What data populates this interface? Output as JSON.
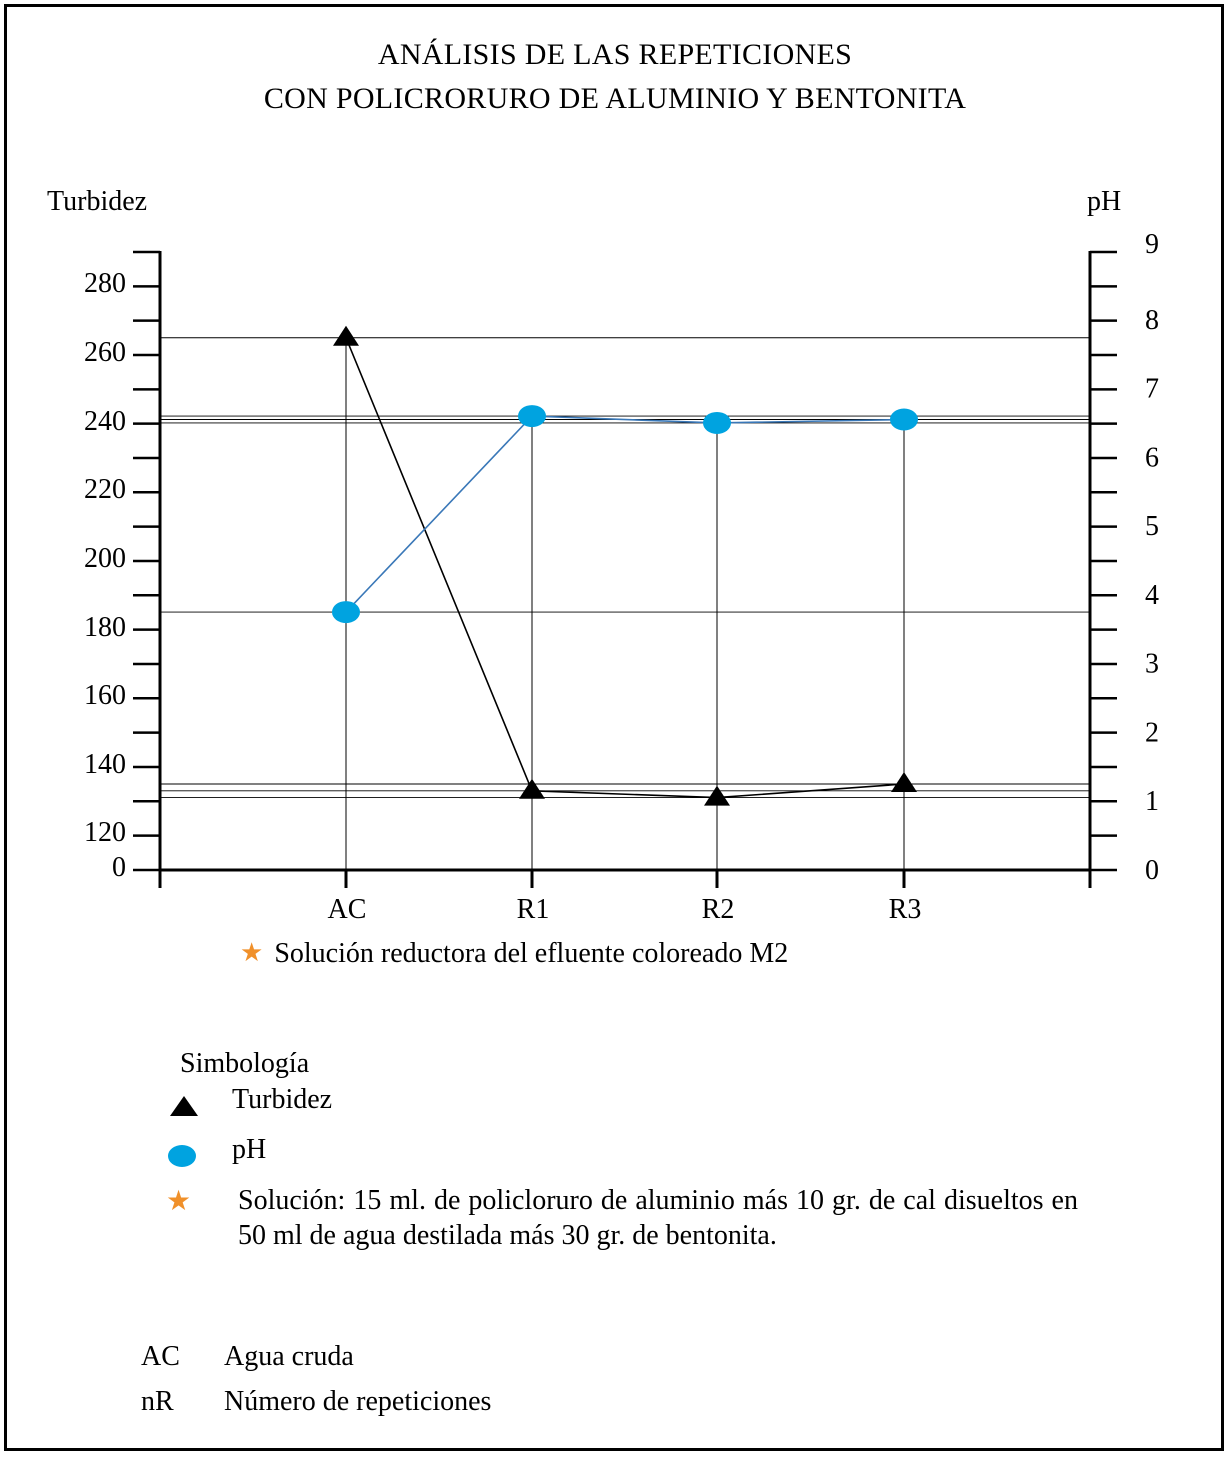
{
  "title_line1": "ANÁLISIS DE LAS REPETICIONES",
  "title_line2": "CON POLICRORURO DE ALUMINIO Y BENTONITA",
  "note": "Solución reductora del efluente coloreado M2",
  "colors": {
    "turbidez": "#000000",
    "ph": "#00a3e0",
    "ph_line": "#3a78b8",
    "star": "#f0902a"
  },
  "legend": {
    "title": "Simbología",
    "turbidez": "Turbidez",
    "ph": "pH",
    "solucion": "Solución: 15 ml. de policloruro de aluminio más 10 gr. de cal disueltos en 50 ml de agua destilada más 30 gr. de bentonita."
  },
  "abbreviations": [
    {
      "key": "AC",
      "value": "Agua cruda"
    },
    {
      "key": "nR",
      "value": "Número de repeticiones"
    }
  ],
  "chart_data": {
    "type": "line",
    "title": "ANÁLISIS DE LAS REPETICIONES CON POLICRORURO DE ALUMINIO Y BENTONITA",
    "categories": [
      "AC",
      "R1",
      "R2",
      "R3"
    ],
    "y_left_label": "Turbidez",
    "y_right_label": "pH",
    "y_left_ticks": [
      "0",
      "120",
      "140",
      "160",
      "180",
      "200",
      "220",
      "240",
      "260",
      "280"
    ],
    "y_right_ticks": [
      "0",
      "1",
      "2",
      "3",
      "4",
      "5",
      "6",
      "7",
      "8",
      "9"
    ],
    "y_left_range": [
      0,
      280
    ],
    "y_right_range": [
      0,
      9
    ],
    "y_left_broken_axis": true,
    "series": [
      {
        "name": "Turbidez",
        "axis": "left",
        "marker": "triangle",
        "values": [
          265,
          133,
          131,
          135
        ]
      },
      {
        "name": "pH",
        "axis": "right",
        "marker": "circle",
        "values": [
          3.75,
          6.6,
          6.5,
          6.55
        ]
      }
    ],
    "grid": false,
    "legend_position": "bottom-left"
  }
}
